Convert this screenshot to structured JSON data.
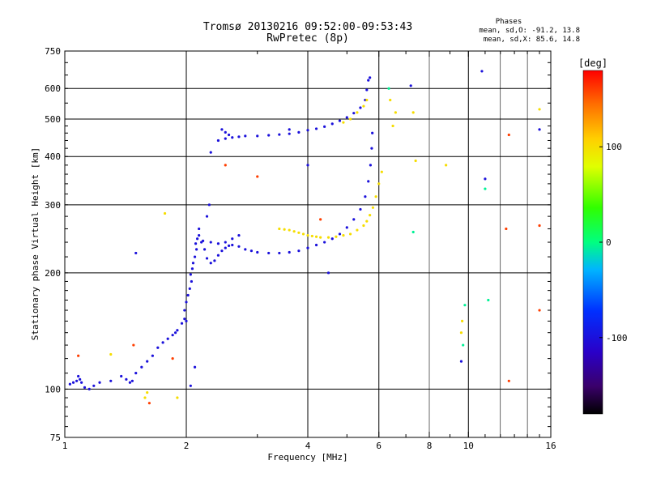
{
  "chart_data": {
    "type": "scatter",
    "title": "Tromsø 20130216 09:52:00-09:53:43",
    "subtitle": "RwPretec (8p)",
    "xlabel": "Frequency [MHz]",
    "ylabel": "Stationary phase Virtual Height [km]",
    "x_scale": "log",
    "y_scale": "log",
    "xlim": [
      1,
      16
    ],
    "ylim": [
      75,
      750
    ],
    "x_ticks": [
      1,
      2,
      4,
      6,
      8,
      10,
      16
    ],
    "x_major_grid": [
      2,
      4,
      6,
      10
    ],
    "x_minor_grid": [
      8,
      12,
      14
    ],
    "y_ticks": [
      75,
      100,
      200,
      300,
      400,
      500,
      600,
      750
    ],
    "grid": true,
    "stats": {
      "heading": "Phases",
      "o_line": "mean, sd,O: -91.2, 13.8",
      "x_line": "mean, sd,X:  85.6, 14.8"
    },
    "colorbar": {
      "label": "[deg]",
      "range": [
        -180,
        180
      ],
      "ticks": [
        -100,
        0,
        100
      ],
      "colormap": "rainbow"
    },
    "series": [
      {
        "phase_deg": -100,
        "points": [
          [
            1.03,
            103
          ],
          [
            1.05,
            104
          ],
          [
            1.07,
            105
          ],
          [
            1.08,
            108
          ],
          [
            1.09,
            106
          ],
          [
            1.1,
            104
          ],
          [
            1.12,
            101
          ],
          [
            1.15,
            100
          ],
          [
            1.18,
            102
          ],
          [
            1.22,
            104
          ],
          [
            1.3,
            105
          ],
          [
            1.38,
            108
          ],
          [
            1.42,
            106
          ],
          [
            1.45,
            104
          ],
          [
            1.47,
            105
          ],
          [
            1.5,
            110
          ],
          [
            1.55,
            114
          ],
          [
            1.6,
            118
          ],
          [
            1.65,
            122
          ],
          [
            1.7,
            128
          ],
          [
            1.75,
            132
          ],
          [
            1.8,
            135
          ],
          [
            1.85,
            138
          ],
          [
            1.88,
            140
          ],
          [
            1.9,
            142
          ],
          [
            1.95,
            148
          ],
          [
            1.98,
            152
          ],
          [
            2.0,
            150
          ],
          [
            1.98,
            160
          ],
          [
            2.0,
            168
          ],
          [
            2.02,
            175
          ],
          [
            2.04,
            182
          ],
          [
            2.06,
            190
          ],
          [
            2.05,
            198
          ],
          [
            2.07,
            205
          ],
          [
            2.08,
            212
          ],
          [
            2.1,
            220
          ],
          [
            2.12,
            230
          ],
          [
            2.11,
            238
          ],
          [
            2.13,
            245
          ],
          [
            2.15,
            250
          ],
          [
            2.18,
            240
          ],
          [
            2.22,
            230
          ],
          [
            2.25,
            218
          ],
          [
            2.3,
            212
          ],
          [
            2.35,
            215
          ],
          [
            2.4,
            222
          ],
          [
            2.45,
            228
          ],
          [
            2.5,
            232
          ],
          [
            2.55,
            235
          ],
          [
            2.6,
            236
          ],
          [
            2.7,
            234
          ],
          [
            2.8,
            230
          ],
          [
            2.9,
            228
          ],
          [
            3.0,
            226
          ],
          [
            3.2,
            225
          ],
          [
            3.4,
            225
          ],
          [
            3.6,
            226
          ],
          [
            3.8,
            228
          ],
          [
            4.0,
            232
          ],
          [
            4.2,
            236
          ],
          [
            4.4,
            240
          ],
          [
            4.6,
            245
          ],
          [
            4.8,
            252
          ],
          [
            5.0,
            262
          ],
          [
            5.2,
            275
          ],
          [
            5.4,
            292
          ],
          [
            5.55,
            315
          ],
          [
            5.65,
            345
          ],
          [
            5.72,
            380
          ],
          [
            5.76,
            420
          ],
          [
            5.78,
            460
          ],
          [
            2.3,
            240
          ],
          [
            2.4,
            238
          ],
          [
            2.5,
            240
          ],
          [
            2.6,
            245
          ],
          [
            2.7,
            250
          ],
          [
            2.2,
            242
          ],
          [
            2.15,
            260
          ],
          [
            2.25,
            280
          ],
          [
            2.28,
            300
          ],
          [
            2.4,
            440
          ],
          [
            2.5,
            445
          ],
          [
            2.6,
            448
          ],
          [
            2.7,
            450
          ],
          [
            2.8,
            452
          ],
          [
            3.0,
            452
          ],
          [
            3.2,
            454
          ],
          [
            3.4,
            456
          ],
          [
            3.6,
            458
          ],
          [
            3.8,
            462
          ],
          [
            4.0,
            468
          ],
          [
            4.2,
            472
          ],
          [
            4.4,
            478
          ],
          [
            4.6,
            486
          ],
          [
            4.8,
            495
          ],
          [
            5.0,
            505
          ],
          [
            5.2,
            518
          ],
          [
            5.4,
            535
          ],
          [
            5.55,
            560
          ],
          [
            5.6,
            595
          ],
          [
            5.65,
            630
          ],
          [
            5.7,
            640
          ],
          [
            2.5,
            462
          ],
          [
            2.45,
            470
          ],
          [
            2.55,
            455
          ],
          [
            2.3,
            410
          ],
          [
            3.6,
            470
          ],
          [
            2.05,
            102
          ],
          [
            2.1,
            114
          ],
          [
            4.0,
            380
          ],
          [
            4.5,
            200
          ],
          [
            1.5,
            225
          ],
          [
            9.6,
            118
          ],
          [
            10.8,
            665
          ],
          [
            15.0,
            470
          ],
          [
            11.0,
            350
          ],
          [
            7.2,
            610
          ]
        ]
      },
      {
        "phase_deg": 100,
        "points": [
          [
            3.4,
            260
          ],
          [
            3.5,
            259
          ],
          [
            3.6,
            258
          ],
          [
            3.7,
            256
          ],
          [
            3.8,
            254
          ],
          [
            3.9,
            252
          ],
          [
            4.0,
            250
          ],
          [
            4.1,
            249
          ],
          [
            4.2,
            248
          ],
          [
            4.3,
            247
          ],
          [
            4.5,
            247
          ],
          [
            4.7,
            248
          ],
          [
            4.9,
            250
          ],
          [
            5.1,
            252
          ],
          [
            5.3,
            258
          ],
          [
            5.5,
            265
          ],
          [
            5.6,
            272
          ],
          [
            5.7,
            282
          ],
          [
            5.8,
            295
          ],
          [
            5.9,
            315
          ],
          [
            6.0,
            340
          ],
          [
            6.1,
            365
          ],
          [
            4.9,
            490
          ],
          [
            5.1,
            500
          ],
          [
            5.3,
            520
          ],
          [
            5.5,
            540
          ],
          [
            5.6,
            560
          ],
          [
            6.4,
            560
          ],
          [
            6.6,
            520
          ],
          [
            6.5,
            480
          ],
          [
            7.3,
            520
          ],
          [
            7.4,
            390
          ],
          [
            8.8,
            380
          ],
          [
            9.6,
            140
          ],
          [
            9.65,
            150
          ],
          [
            15.0,
            530
          ],
          [
            1.77,
            285
          ],
          [
            1.58,
            95
          ],
          [
            1.6,
            98
          ],
          [
            1.3,
            123
          ],
          [
            1.9,
            95
          ]
        ]
      },
      {
        "phase_deg": -5,
        "points": [
          [
            6.35,
            600
          ],
          [
            7.3,
            255
          ],
          [
            9.8,
            165
          ],
          [
            9.7,
            130
          ],
          [
            11.0,
            330
          ],
          [
            11.2,
            170
          ]
        ]
      },
      {
        "phase_deg": 160,
        "points": [
          [
            3.0,
            355
          ],
          [
            4.3,
            275
          ],
          [
            12.6,
            455
          ],
          [
            12.4,
            260
          ],
          [
            12.6,
            105
          ],
          [
            15.0,
            265
          ],
          [
            15.0,
            160
          ],
          [
            1.08,
            122
          ],
          [
            1.48,
            130
          ],
          [
            1.62,
            92
          ],
          [
            1.85,
            120
          ],
          [
            2.5,
            380
          ]
        ]
      }
    ]
  }
}
